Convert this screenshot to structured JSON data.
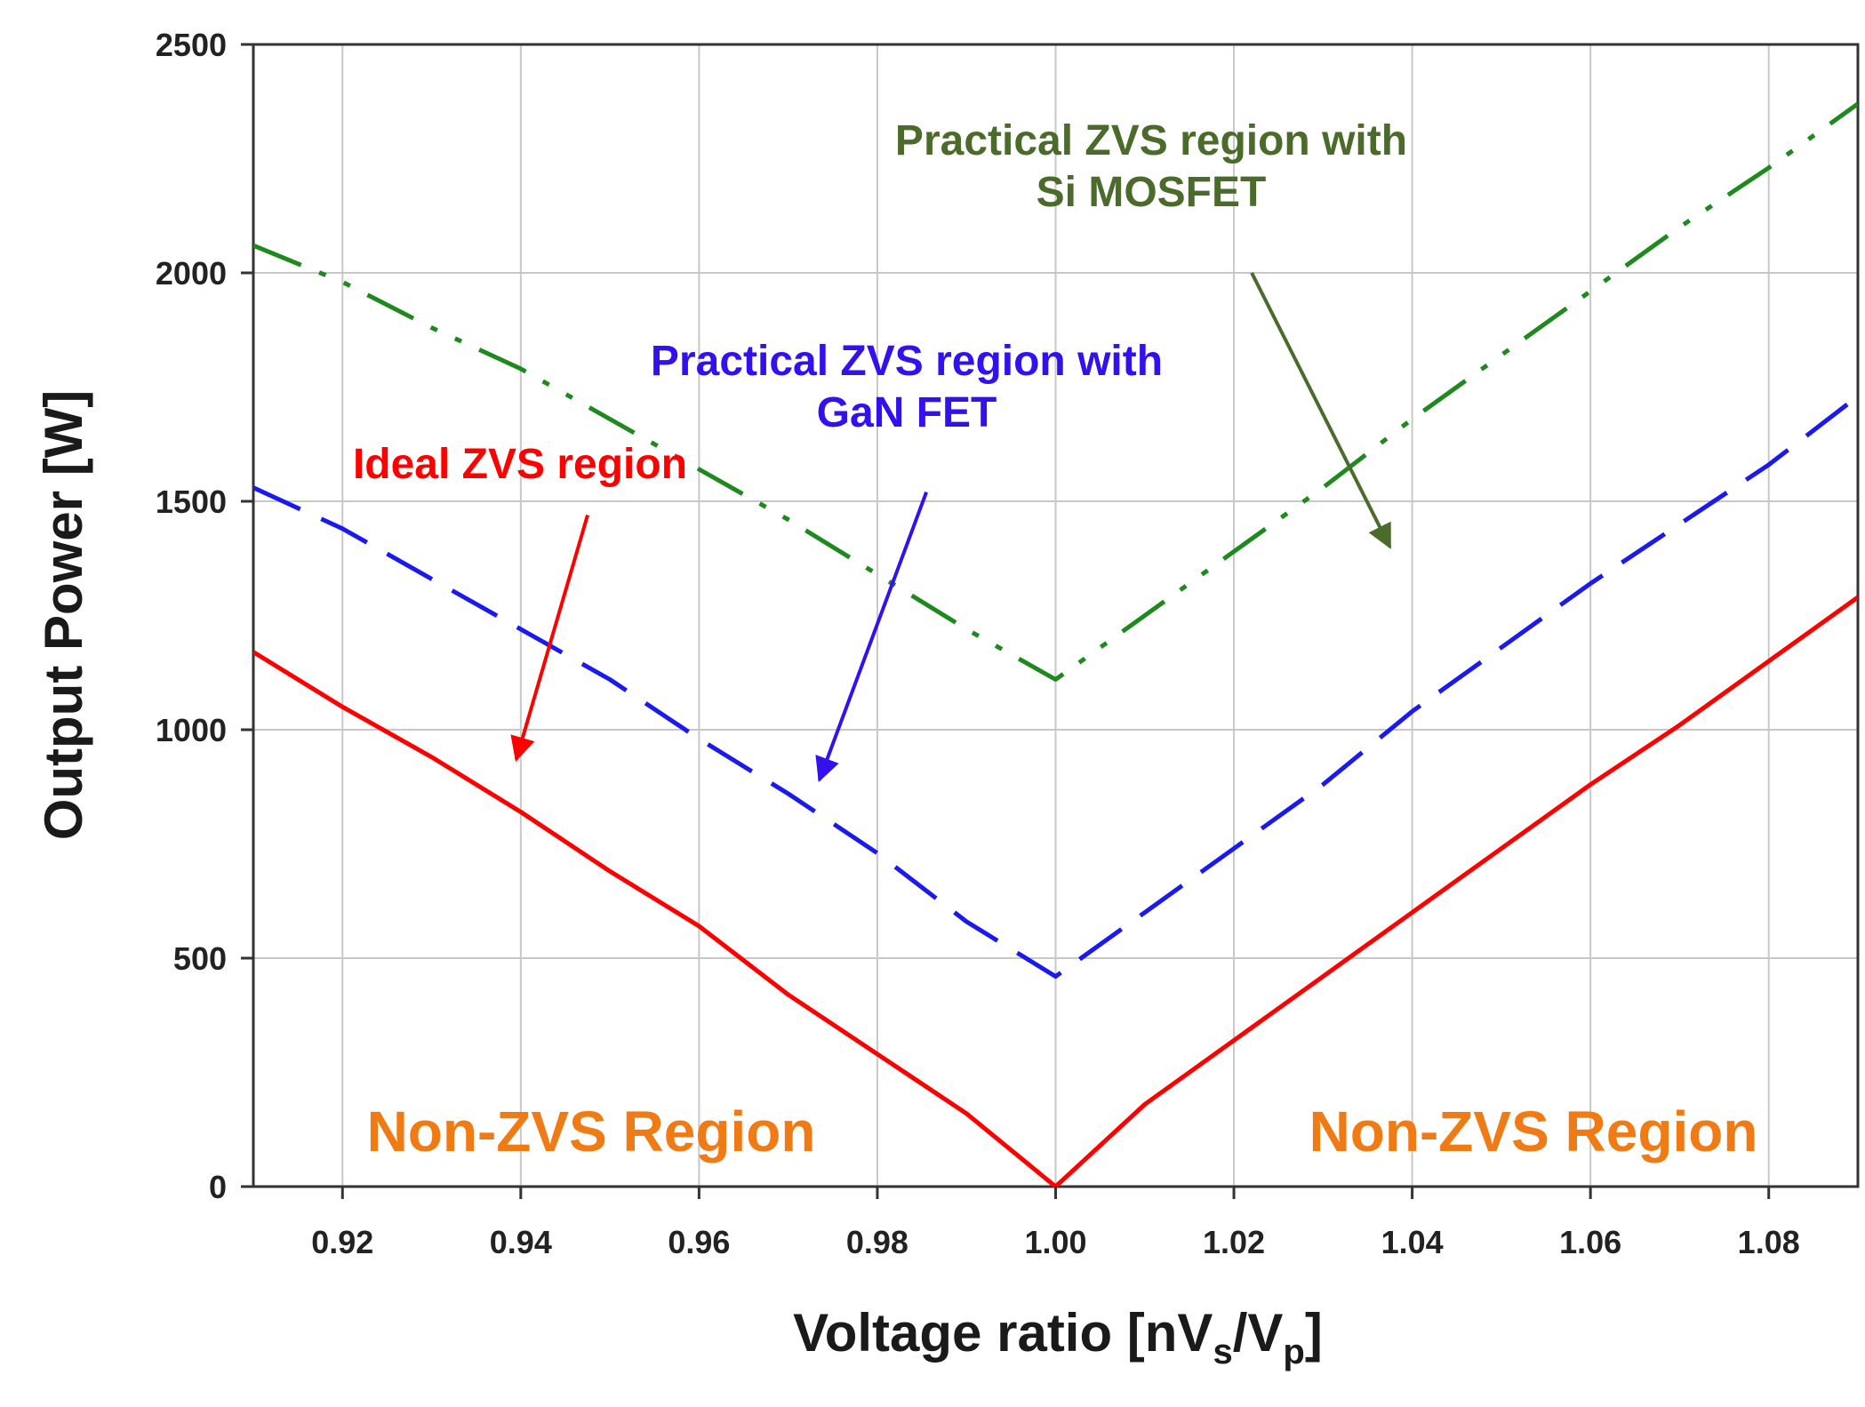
{
  "chart_data": {
    "type": "line",
    "xlabel": "Voltage ratio [nV",
    "xlabel_sub1": "s",
    "xlabel_mid": "/V",
    "xlabel_sub2": "p",
    "xlabel_end": "]",
    "ylabel": "Output Power [W]",
    "xlim": [
      0.91,
      1.09
    ],
    "ylim": [
      0,
      2500
    ],
    "xticks": [
      0.92,
      0.94,
      0.96,
      0.98,
      1.0,
      1.02,
      1.04,
      1.06,
      1.08
    ],
    "xtick_labels": [
      "0.92",
      "0.94",
      "0.96",
      "0.98",
      "1.00",
      "1.02",
      "1.04",
      "1.06",
      "1.08"
    ],
    "yticks": [
      0,
      500,
      1000,
      1500,
      2000,
      2500
    ],
    "ytick_labels": [
      "0",
      "500",
      "1000",
      "1500",
      "2000",
      "2500"
    ],
    "grid": true,
    "series": [
      {
        "key": "ideal",
        "color": "#ff0000",
        "style": "solid",
        "x": [
          0.91,
          0.92,
          0.93,
          0.94,
          0.95,
          0.96,
          0.97,
          0.98,
          0.99,
          1.0,
          1.01,
          1.02,
          1.03,
          1.04,
          1.05,
          1.06,
          1.07,
          1.08,
          1.09
        ],
        "y": [
          1170,
          1050,
          940,
          820,
          690,
          570,
          420,
          290,
          160,
          0,
          180,
          320,
          460,
          600,
          740,
          880,
          1010,
          1150,
          1290
        ]
      },
      {
        "key": "gan",
        "color": "#1a1aee",
        "style": "dashed",
        "x": [
          0.91,
          0.92,
          0.93,
          0.94,
          0.95,
          0.96,
          0.97,
          0.98,
          0.99,
          1.0,
          1.01,
          1.02,
          1.03,
          1.04,
          1.05,
          1.06,
          1.07,
          1.08,
          1.09
        ],
        "y": [
          1530,
          1440,
          1330,
          1220,
          1110,
          980,
          860,
          730,
          580,
          460,
          600,
          740,
          880,
          1040,
          1180,
          1320,
          1450,
          1580,
          1730
        ]
      },
      {
        "key": "si",
        "color": "#1e8a1e",
        "style": "dashdotdot",
        "x": [
          0.91,
          0.92,
          0.93,
          0.94,
          0.95,
          0.96,
          0.97,
          0.98,
          0.99,
          1.0,
          1.01,
          1.02,
          1.03,
          1.04,
          1.05,
          1.06,
          1.07,
          1.08,
          1.09
        ],
        "y": [
          2060,
          1980,
          1880,
          1790,
          1680,
          1570,
          1460,
          1340,
          1220,
          1110,
          1250,
          1390,
          1530,
          1680,
          1820,
          1960,
          2100,
          2230,
          2370
        ]
      }
    ],
    "annotations": [
      {
        "key": "ideal",
        "lines": [
          "Ideal ZVS region"
        ],
        "color": "#ff0000",
        "arrow_from": [
          0.9475,
          1470
        ],
        "arrow_to": [
          0.9395,
          935
        ]
      },
      {
        "key": "gan",
        "lines": [
          "Practical ZVS region with",
          "GaN FET"
        ],
        "color": "#3311ee",
        "arrow_from": [
          0.9855,
          1520
        ],
        "arrow_to": [
          0.9735,
          890
        ]
      },
      {
        "key": "si",
        "lines": [
          "Practical ZVS region with",
          "Si MOSFET"
        ],
        "color": "#4b6b2a",
        "arrow_from": [
          1.022,
          2000
        ],
        "arrow_to": [
          1.0375,
          1400
        ]
      }
    ],
    "regions": [
      {
        "key": "left",
        "text": "Non-ZVS Region",
        "color": "#f07a14"
      },
      {
        "key": "right",
        "text": "Non-ZVS Region",
        "color": "#f07a14"
      }
    ]
  }
}
